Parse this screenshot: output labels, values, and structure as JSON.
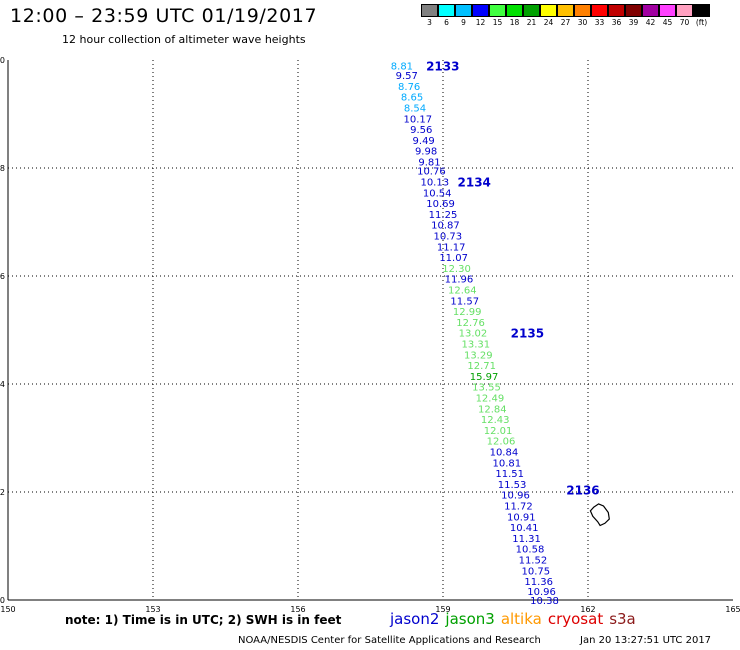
{
  "title": "12:00 – 23:59 UTC 01/19/2017",
  "subtitle": "12 hour collection of altimeter wave heights",
  "scale": {
    "colors": [
      "#808080",
      "#00ffff",
      "#00c0ff",
      "#0000ff",
      "#40ff40",
      "#00e000",
      "#00a000",
      "#ffff00",
      "#ffc000",
      "#ff8000",
      "#ff0000",
      "#c00000",
      "#800000",
      "#a000a0",
      "#ff40ff",
      "#ffa0c0",
      "#000000"
    ],
    "labels": [
      "3",
      "6",
      "9",
      "12",
      "15",
      "18",
      "21",
      "24",
      "27",
      "30",
      "33",
      "36",
      "39",
      "42",
      "45",
      "70",
      "(ft)"
    ]
  },
  "chart_data": {
    "type": "map",
    "xlim": [
      150,
      165
    ],
    "ylim": [
      10,
      20
    ],
    "x_ticks": [
      "150",
      "153",
      "156",
      "159",
      "162",
      "165"
    ],
    "y_ticks": [
      "20",
      "18",
      "16",
      "14",
      "12",
      "10"
    ],
    "grid": true,
    "series": [
      {
        "name": "jason2",
        "points": [
          {
            "lon": 158.15,
            "lat": 19.9,
            "v": "8.81",
            "color": "#00aaff"
          },
          {
            "lon": 158.25,
            "lat": 19.72,
            "v": "9.57",
            "color": "#0000cc"
          },
          {
            "lon": 158.3,
            "lat": 19.52,
            "v": "8.76",
            "color": "#00aaff"
          },
          {
            "lon": 158.36,
            "lat": 19.32,
            "v": "8.65",
            "color": "#00aaff"
          },
          {
            "lon": 158.42,
            "lat": 19.12,
            "v": "8.54",
            "color": "#00aaff"
          },
          {
            "lon": 158.48,
            "lat": 18.92,
            "v": "10.17",
            "color": "#0000cc"
          },
          {
            "lon": 158.55,
            "lat": 18.72,
            "v": "9.56",
            "color": "#0000cc"
          },
          {
            "lon": 158.6,
            "lat": 18.52,
            "v": "9.49",
            "color": "#0000cc"
          },
          {
            "lon": 158.65,
            "lat": 18.32,
            "v": "9.98",
            "color": "#0000cc"
          },
          {
            "lon": 158.72,
            "lat": 18.12,
            "v": "9.81",
            "color": "#0000cc"
          },
          {
            "lon": 158.76,
            "lat": 17.95,
            "v": "10.76",
            "color": "#0000cc"
          },
          {
            "lon": 158.83,
            "lat": 17.75,
            "v": "10.13",
            "color": "#0000cc"
          },
          {
            "lon": 158.88,
            "lat": 17.55,
            "v": "10.54",
            "color": "#0000cc"
          },
          {
            "lon": 158.95,
            "lat": 17.35,
            "v": "10.69",
            "color": "#0000cc"
          },
          {
            "lon": 159.0,
            "lat": 17.15,
            "v": "11.25",
            "color": "#0000cc"
          },
          {
            "lon": 159.05,
            "lat": 16.95,
            "v": "10.87",
            "color": "#0000cc"
          },
          {
            "lon": 159.1,
            "lat": 16.75,
            "v": "10.73",
            "color": "#0000cc"
          },
          {
            "lon": 159.17,
            "lat": 16.55,
            "v": "11.17",
            "color": "#0000cc"
          },
          {
            "lon": 159.22,
            "lat": 16.35,
            "v": "11.07",
            "color": "#0000cc"
          },
          {
            "lon": 159.28,
            "lat": 16.15,
            "v": "12.30",
            "color": "#66e066"
          },
          {
            "lon": 159.33,
            "lat": 15.95,
            "v": "11.96",
            "color": "#0000cc"
          },
          {
            "lon": 159.4,
            "lat": 15.75,
            "v": "12.64",
            "color": "#66e066"
          },
          {
            "lon": 159.45,
            "lat": 15.55,
            "v": "11.57",
            "color": "#0000cc"
          },
          {
            "lon": 159.5,
            "lat": 15.35,
            "v": "12.99",
            "color": "#66e066"
          },
          {
            "lon": 159.57,
            "lat": 15.15,
            "v": "12.76",
            "color": "#66e066"
          },
          {
            "lon": 159.62,
            "lat": 14.95,
            "v": "13.02",
            "color": "#66e066"
          },
          {
            "lon": 159.68,
            "lat": 14.75,
            "v": "13.31",
            "color": "#66e066"
          },
          {
            "lon": 159.73,
            "lat": 14.55,
            "v": "13.29",
            "color": "#66e066"
          },
          {
            "lon": 159.8,
            "lat": 14.35,
            "v": "12.71",
            "color": "#66e066"
          },
          {
            "lon": 159.85,
            "lat": 14.15,
            "v": "15.97",
            "color": "#00a000"
          },
          {
            "lon": 159.9,
            "lat": 13.95,
            "v": "13.55",
            "color": "#66e066"
          },
          {
            "lon": 159.97,
            "lat": 13.75,
            "v": "12.49",
            "color": "#66e066"
          },
          {
            "lon": 160.02,
            "lat": 13.55,
            "v": "12.84",
            "color": "#66e066"
          },
          {
            "lon": 160.08,
            "lat": 13.35,
            "v": "12.43",
            "color": "#66e066"
          },
          {
            "lon": 160.14,
            "lat": 13.15,
            "v": "12.01",
            "color": "#66e066"
          },
          {
            "lon": 160.2,
            "lat": 12.95,
            "v": "12.06",
            "color": "#66e066"
          },
          {
            "lon": 160.26,
            "lat": 12.75,
            "v": "10.84",
            "color": "#0000cc"
          },
          {
            "lon": 160.32,
            "lat": 12.55,
            "v": "10.81",
            "color": "#0000cc"
          },
          {
            "lon": 160.38,
            "lat": 12.35,
            "v": "11.51",
            "color": "#0000cc"
          },
          {
            "lon": 160.43,
            "lat": 12.15,
            "v": "11.53",
            "color": "#0000cc"
          },
          {
            "lon": 160.5,
            "lat": 11.95,
            "v": "10.96",
            "color": "#0000cc"
          },
          {
            "lon": 160.56,
            "lat": 11.75,
            "v": "11.72",
            "color": "#0000cc"
          },
          {
            "lon": 160.62,
            "lat": 11.55,
            "v": "10.91",
            "color": "#0000cc"
          },
          {
            "lon": 160.68,
            "lat": 11.35,
            "v": "10.41",
            "color": "#0000cc"
          },
          {
            "lon": 160.73,
            "lat": 11.15,
            "v": "11.31",
            "color": "#0000cc"
          },
          {
            "lon": 160.8,
            "lat": 10.95,
            "v": "10.58",
            "color": "#0000cc"
          },
          {
            "lon": 160.86,
            "lat": 10.75,
            "v": "11.52",
            "color": "#0000cc"
          },
          {
            "lon": 160.92,
            "lat": 10.55,
            "v": "10.75",
            "color": "#0000cc"
          },
          {
            "lon": 160.98,
            "lat": 10.35,
            "v": "11.36",
            "color": "#0000cc"
          },
          {
            "lon": 161.04,
            "lat": 10.17,
            "v": "10.96",
            "color": "#0000cc"
          },
          {
            "lon": 161.1,
            "lat": 10.0,
            "v": "10.38",
            "color": "#0000cc"
          }
        ]
      }
    ],
    "pass_labels": [
      {
        "lon": 158.65,
        "lat": 19.9,
        "text": "2133"
      },
      {
        "lon": 159.3,
        "lat": 17.75,
        "text": "2134"
      },
      {
        "lon": 160.4,
        "lat": 14.95,
        "text": "2135"
      },
      {
        "lon": 161.55,
        "lat": 12.05,
        "text": "2136"
      }
    ],
    "island": [
      [
        162.12,
        11.72
      ],
      [
        162.22,
        11.78
      ],
      [
        162.32,
        11.74
      ],
      [
        162.42,
        11.62
      ],
      [
        162.44,
        11.5
      ],
      [
        162.35,
        11.42
      ],
      [
        162.25,
        11.38
      ],
      [
        162.2,
        11.45
      ],
      [
        162.1,
        11.55
      ],
      [
        162.05,
        11.65
      ],
      [
        162.12,
        11.72
      ]
    ]
  },
  "note": "note:  1) Time is in UTC;  2) SWH is in feet",
  "satellites": [
    {
      "name": "jason2",
      "color": "#0000cc"
    },
    {
      "name": "jason3",
      "color": "#00a000"
    },
    {
      "name": "altika",
      "color": "#ff9900"
    },
    {
      "name": "cryosat",
      "color": "#dd0000"
    },
    {
      "name": "s3a",
      "color": "#8b1a1a"
    }
  ],
  "credit": "NOAA/NESDIS Center for Satellite Applications and Research",
  "timestamp": "Jan 20 13:27:51 UTC 2017"
}
